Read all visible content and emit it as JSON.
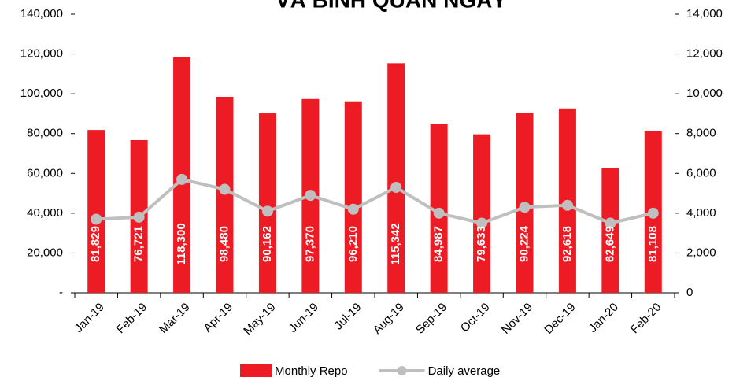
{
  "chart_data": {
    "type": "bar_line",
    "title": "VÀ BÌNH QUÂN NGÀY",
    "categories": [
      "Jan-19",
      "Feb-19",
      "Mar-19",
      "Apr-19",
      "May-19",
      "Jun-19",
      "Jul-19",
      "Aug-19",
      "Sep-19",
      "Oct-19",
      "Nov-19",
      "Dec-19",
      "Jan-20",
      "Feb-20"
    ],
    "series": [
      {
        "name": "Monthly Repo",
        "color": "#ed1c24",
        "type": "bar",
        "values": [
          81829,
          76721,
          118300,
          98480,
          90162,
          97370,
          96210,
          115342,
          84987,
          79633,
          90224,
          92618,
          62649,
          81108
        ],
        "value_labels": [
          "81,829",
          "76,721",
          "118,300",
          "98,480",
          "90,162",
          "97,370",
          "96,210",
          "115,342",
          "84,987",
          "79,633",
          "90,224",
          "92,618",
          "62,649",
          "81,108"
        ]
      },
      {
        "name": "Daily average",
        "color": "#bfbfbf",
        "type": "line",
        "axis": "y2",
        "values": [
          3700,
          3800,
          5700,
          5200,
          4100,
          4900,
          4200,
          5300,
          4000,
          3500,
          4300,
          4400,
          3500,
          4000
        ]
      }
    ],
    "ylim": [
      0,
      140000
    ],
    "yticks": [
      {
        "value": 0,
        "label": "-"
      },
      {
        "value": 20000,
        "label": "20,000"
      },
      {
        "value": 40000,
        "label": "40,000"
      },
      {
        "value": 60000,
        "label": "60,000"
      },
      {
        "value": 80000,
        "label": "80,000"
      },
      {
        "value": 100000,
        "label": "100,000"
      },
      {
        "value": 120000,
        "label": "120,000"
      },
      {
        "value": 140000,
        "label": "140,000"
      }
    ],
    "y2lim": [
      0,
      14000
    ],
    "y2ticks": [
      0,
      {
        "value": 2000,
        "label": "2,000"
      },
      {
        "value": 4000,
        "label": "4,000"
      },
      {
        "value": 6000,
        "label": "6,000"
      },
      {
        "value": 8000,
        "label": "8,000"
      },
      {
        "value": 10000,
        "label": "10,000"
      },
      {
        "value": 12000,
        "label": "12,000"
      },
      {
        "value": 14000,
        "label": "14,000"
      }
    ],
    "grid": false,
    "legend": "bottom"
  }
}
